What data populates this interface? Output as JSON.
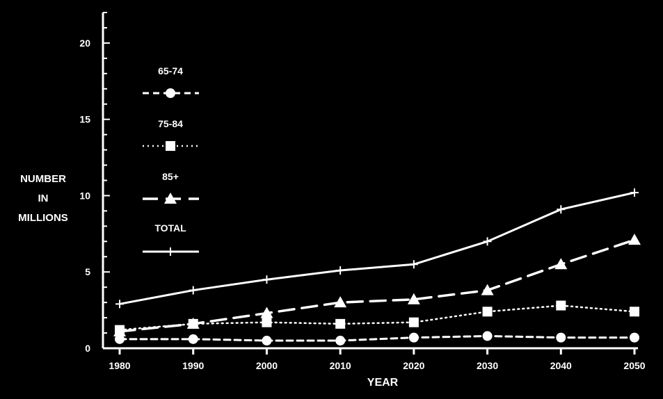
{
  "chart_data": {
    "type": "line",
    "title": "",
    "xlabel": "YEAR",
    "ylabel": [
      "NUMBER",
      "IN",
      "MILLIONS"
    ],
    "x": [
      1980,
      1990,
      2000,
      2010,
      2020,
      2030,
      2040,
      2050
    ],
    "xticks": [
      "1980",
      "1990",
      "2000",
      "2010",
      "2020",
      "2030",
      "2040",
      "2050"
    ],
    "yticks": [
      "0",
      "5",
      "10",
      "15",
      "20"
    ],
    "ytick_values": [
      0,
      5,
      10,
      15,
      20
    ],
    "xlim": [
      1980,
      2050
    ],
    "ylim": [
      0,
      22
    ],
    "grid": false,
    "legend_position": "left inside plot",
    "series": [
      {
        "name": "65-74",
        "marker": "circle",
        "line_style": "short-dash",
        "values": [
          0.6,
          0.6,
          0.5,
          0.5,
          0.7,
          0.8,
          0.7,
          0.7
        ]
      },
      {
        "name": "75-84",
        "marker": "square",
        "line_style": "dotted",
        "values": [
          1.2,
          1.6,
          1.7,
          1.6,
          1.7,
          2.4,
          2.8,
          2.4
        ]
      },
      {
        "name": "85+",
        "marker": "triangle",
        "line_style": "long-dash",
        "values": [
          1.1,
          1.6,
          2.3,
          3.0,
          3.2,
          3.8,
          5.5,
          7.1
        ]
      },
      {
        "name": "TOTAL",
        "marker": "plus",
        "line_style": "solid",
        "values": [
          2.9,
          3.8,
          4.5,
          5.1,
          5.5,
          7.0,
          9.1,
          10.2
        ]
      }
    ]
  },
  "colors": {
    "background": "#000000",
    "foreground": "#ffffff"
  }
}
